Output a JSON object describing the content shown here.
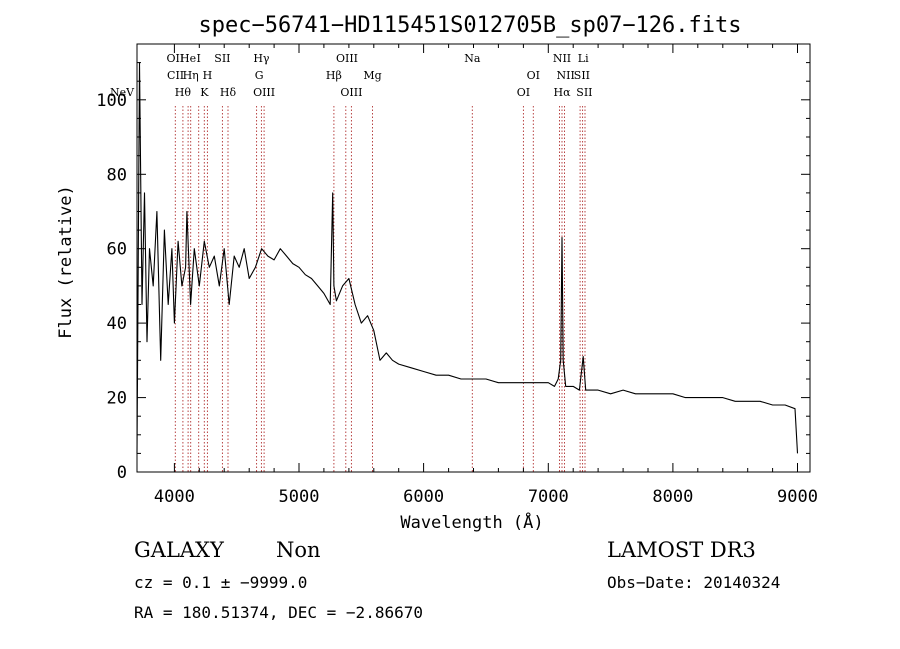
{
  "chart_data": {
    "type": "line",
    "title": "spec−56741−HD115451S012705B_sp07−126.fits",
    "xlabel": "Wavelength (Å)",
    "ylabel": "Flux (relative)",
    "xlim": [
      3700,
      9100
    ],
    "ylim": [
      0,
      115
    ],
    "x_ticks": [
      4000,
      5000,
      6000,
      7000,
      8000,
      9000
    ],
    "y_ticks": [
      0,
      20,
      40,
      60,
      80,
      100
    ],
    "grid": false,
    "series": [
      {
        "name": "flux",
        "x": [
          3700,
          3720,
          3740,
          3760,
          3780,
          3800,
          3830,
          3860,
          3890,
          3920,
          3950,
          3980,
          4000,
          4030,
          4060,
          4090,
          4100,
          4130,
          4160,
          4200,
          4240,
          4280,
          4320,
          4360,
          4400,
          4440,
          4480,
          4520,
          4560,
          4600,
          4650,
          4700,
          4750,
          4800,
          4850,
          4900,
          4950,
          5000,
          5050,
          5100,
          5150,
          5200,
          5250,
          5270,
          5280,
          5300,
          5350,
          5400,
          5450,
          5500,
          5550,
          5600,
          5650,
          5700,
          5750,
          5800,
          5900,
          6000,
          6100,
          6200,
          6300,
          6400,
          6500,
          6600,
          6700,
          6800,
          6900,
          7000,
          7050,
          7080,
          7100,
          7110,
          7120,
          7140,
          7180,
          7200,
          7250,
          7280,
          7300,
          7350,
          7400,
          7500,
          7600,
          7700,
          7800,
          7900,
          8000,
          8100,
          8200,
          8300,
          8400,
          8500,
          8600,
          8700,
          8800,
          8900,
          8980,
          9000
        ],
        "values": [
          5,
          110,
          45,
          75,
          35,
          60,
          50,
          70,
          30,
          65,
          45,
          60,
          40,
          62,
          50,
          55,
          70,
          45,
          60,
          50,
          62,
          55,
          58,
          50,
          60,
          45,
          58,
          55,
          60,
          52,
          55,
          60,
          58,
          57,
          60,
          58,
          56,
          55,
          53,
          52,
          50,
          48,
          45,
          75,
          50,
          46,
          50,
          52,
          45,
          40,
          42,
          38,
          30,
          32,
          30,
          29,
          28,
          27,
          26,
          26,
          25,
          25,
          25,
          24,
          24,
          24,
          24,
          24,
          23,
          25,
          30,
          63,
          30,
          23,
          23,
          23,
          22,
          31,
          22,
          22,
          22,
          21,
          22,
          21,
          21,
          21,
          21,
          20,
          20,
          20,
          20,
          19,
          19,
          19,
          18,
          18,
          17,
          5
        ]
      }
    ],
    "emission_lines": [
      {
        "label": "NeV",
        "wavelength": 3426,
        "row": 3
      },
      {
        "label": "OII",
        "wavelength": 4007,
        "row": 1
      },
      {
        "label": "CII",
        "wavelength": 4010,
        "row": 2
      },
      {
        "label": "Hθ",
        "wavelength": 4068,
        "row": 3
      },
      {
        "label": "He",
        "wavelength": 4110,
        "row": 1
      },
      {
        "label": "Hη",
        "wavelength": 4131,
        "row": 2
      },
      {
        "label": "I",
        "wavelength": 4195,
        "row": 1
      },
      {
        "label": "H",
        "wavelength": 4265,
        "row": 2
      },
      {
        "label": "K",
        "wavelength": 4240,
        "row": 3
      },
      {
        "label": "SII",
        "wavelength": 4385,
        "row": 1
      },
      {
        "label": "Hδ",
        "wavelength": 4430,
        "row": 3
      },
      {
        "label": "Hγ",
        "wavelength": 4698,
        "row": 1
      },
      {
        "label": "G",
        "wavelength": 4680,
        "row": 2
      },
      {
        "label": "OIII",
        "wavelength": 4720,
        "row": 3
      },
      {
        "label": "OIII",
        "wavelength": 5385,
        "row": 1
      },
      {
        "label": "Hβ",
        "wavelength": 5280,
        "row": 2
      },
      {
        "label": "OIII",
        "wavelength": 5420,
        "row": 3
      },
      {
        "label": "Mg",
        "wavelength": 5590,
        "row": 2
      },
      {
        "label": "Na",
        "wavelength": 6390,
        "row": 1
      },
      {
        "label": "OI",
        "wavelength": 6880,
        "row": 2
      },
      {
        "label": "OI",
        "wavelength": 6800,
        "row": 3
      },
      {
        "label": "NII",
        "wavelength": 7110,
        "row": 1
      },
      {
        "label": "NII",
        "wavelength": 7140,
        "row": 2
      },
      {
        "label": "Hα",
        "wavelength": 7110,
        "row": 3
      },
      {
        "label": "Li",
        "wavelength": 7280,
        "row": 1
      },
      {
        "label": "SII",
        "wavelength": 7270,
        "row": 2
      },
      {
        "label": "SII",
        "wavelength": 7290,
        "row": 3
      }
    ],
    "line_marker_wavelengths": [
      4007,
      4068,
      4110,
      4131,
      4195,
      4240,
      4265,
      4385,
      4430,
      4660,
      4698,
      4720,
      5280,
      5375,
      5420,
      5590,
      6390,
      6800,
      6880,
      7090,
      7110,
      7130,
      7255,
      7275,
      7295
    ]
  },
  "info": {
    "object_class": "GALAXY",
    "subclass": "Non",
    "redshift_line": "cz = 0.1  ±  −9999.0",
    "coords_line": "RA = 180.51374, DEC =  −2.86670",
    "survey": "LAMOST DR3",
    "obs_date": "Obs−Date: 20140324"
  },
  "colors": {
    "axis": "#000000",
    "line_marker": "#b03030",
    "background": "#ffffff"
  }
}
